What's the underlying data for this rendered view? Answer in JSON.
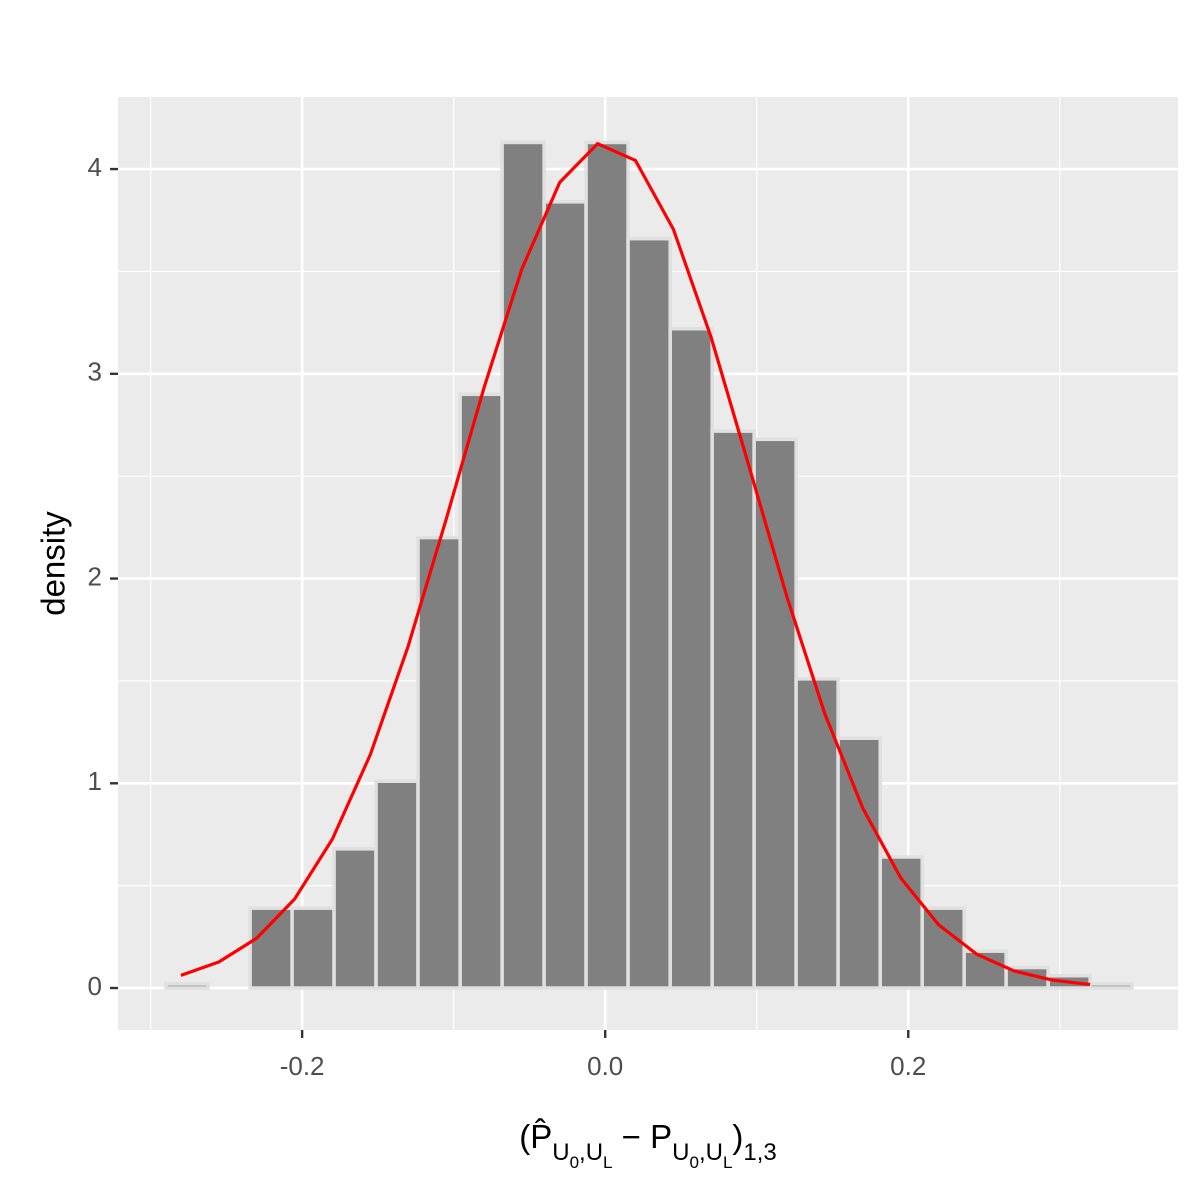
{
  "chart_data": {
    "type": "histogram",
    "bins": [
      -0.2898,
      -0.2621,
      -0.2343,
      -0.2066,
      -0.1789,
      -0.1512,
      -0.1235,
      -0.0957,
      -0.068,
      -0.0403,
      -0.0126,
      0.0151,
      0.0429,
      0.0706,
      0.0983,
      0.126,
      0.1537,
      0.1815,
      0.2092,
      0.2369,
      0.2646,
      0.2923,
      0.32,
      0.3478
    ],
    "values": [
      0.02,
      0,
      0.39,
      0.39,
      0.68,
      1.01,
      2.2,
      2.9,
      4.13,
      3.84,
      4.13,
      3.66,
      3.22,
      2.72,
      2.68,
      1.51,
      1.22,
      0.64,
      0.39,
      0.18,
      0.1,
      0.06,
      0.02
    ],
    "color": "#808080",
    "edge_color": "#e0e0e0",
    "curve": {
      "color": "#ff0000",
      "x": [
        -0.28,
        -0.255,
        -0.23,
        -0.205,
        -0.18,
        -0.155,
        -0.13,
        -0.105,
        -0.08,
        -0.055,
        -0.03,
        -0.005,
        0.02,
        0.045,
        0.07,
        0.095,
        0.12,
        0.145,
        0.17,
        0.195,
        0.22,
        0.245,
        0.27,
        0.295,
        0.32
      ],
      "y": [
        0.062,
        0.127,
        0.243,
        0.434,
        0.728,
        1.14,
        1.67,
        2.288,
        2.931,
        3.512,
        3.935,
        4.124,
        4.042,
        3.706,
        3.176,
        2.546,
        1.909,
        1.338,
        0.878,
        0.538,
        0.309,
        0.166,
        0.083,
        0.039,
        0.017
      ]
    },
    "xlim": [
      -0.3215,
      0.378
    ],
    "ylim": [
      -0.205,
      4.352
    ],
    "xticks": [
      -0.2,
      {
        "value": 0,
        "label": "0.0"
      },
      0.2
    ],
    "yticks": [
      0,
      1,
      2,
      3,
      4
    ],
    "x_minor_grid": [
      -0.3,
      -0.1,
      0.1,
      0.3
    ],
    "y_minor_grid": [
      0.5,
      1.5,
      2.5,
      3.5
    ],
    "grid": true,
    "ylabel": "density",
    "xlabel": [
      {
        "text": "(",
        "style": "normal"
      },
      {
        "text": "P̂",
        "style": "normal"
      },
      {
        "text": "U",
        "style": "sub"
      },
      {
        "text": "0",
        "style": "subsub"
      },
      {
        "text": ",U",
        "style": "sub"
      },
      {
        "text": "L",
        "style": "subsub"
      },
      {
        "text": " − P",
        "style": "normal"
      },
      {
        "text": "U",
        "style": "sub"
      },
      {
        "text": "0",
        "style": "subsub"
      },
      {
        "text": ",U",
        "style": "sub"
      },
      {
        "text": "L",
        "style": "subsub"
      },
      {
        "text": ")",
        "style": "normal"
      },
      {
        "text": "1,3",
        "style": "sub"
      }
    ]
  }
}
